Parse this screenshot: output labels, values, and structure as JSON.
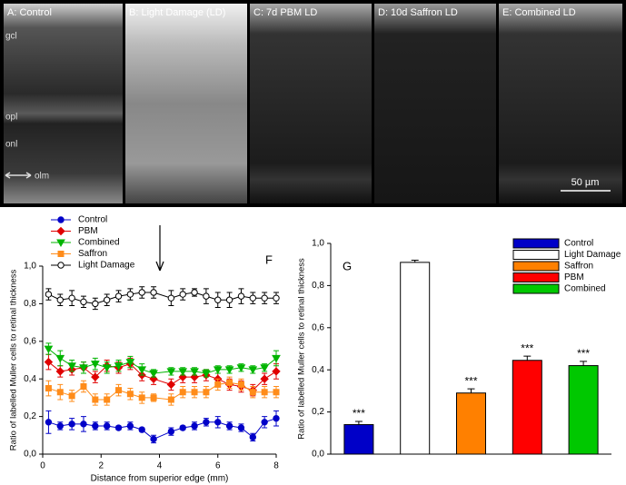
{
  "image_panels": {
    "labels": [
      "A: Control",
      "B: Light Damage (LD)",
      "C: 7d PBM LD",
      "D: 10d Saffron LD",
      "E: Combined LD"
    ],
    "layer_labels": [
      "gcl",
      "opl",
      "onl",
      "olm"
    ],
    "scale_bar": "50 µm"
  },
  "chart_data": [
    {
      "type": "line",
      "panel": "F",
      "xlabel": "Distance from superior edge (mm)",
      "ylabel": "Ratio of labelled Muller cells to retinal thickness",
      "x": [
        0.2,
        0.6,
        1.0,
        1.4,
        1.8,
        2.2,
        2.6,
        3.0,
        3.4,
        3.8,
        4.4,
        4.8,
        5.2,
        5.6,
        6.0,
        6.4,
        6.8,
        7.2,
        7.6,
        8.0
      ],
      "xlim": [
        0,
        8
      ],
      "xticks": [
        0,
        2,
        4,
        6,
        8
      ],
      "ylim": [
        0,
        1
      ],
      "yticks": [
        {
          "value": 0,
          "label": "0,0"
        },
        {
          "value": 0.2,
          "label": "0,2"
        },
        {
          "value": 0.4,
          "label": "0,4"
        },
        {
          "value": 0.6,
          "label": "0,6"
        },
        {
          "value": 0.8,
          "label": "0,8"
        },
        {
          "value": 1,
          "label": "1,0"
        }
      ],
      "series": [
        {
          "name": "Control",
          "color": "#0000c8",
          "marker": "circle",
          "marker_fill": "#0000c8",
          "values": [
            0.17,
            0.15,
            0.16,
            0.16,
            0.15,
            0.15,
            0.14,
            0.15,
            0.13,
            0.08,
            0.12,
            0.14,
            0.15,
            0.17,
            0.17,
            0.15,
            0.14,
            0.09,
            0.17,
            0.19
          ],
          "errors": [
            0.06,
            0.02,
            0.03,
            0.04,
            0.02,
            0.02,
            0.01,
            0.02,
            0.01,
            0.02,
            0.02,
            0.01,
            0.02,
            0.02,
            0.03,
            0.02,
            0.02,
            0.02,
            0.03,
            0.04
          ]
        },
        {
          "name": "PBM",
          "color": "#e00000",
          "marker": "diamond",
          "marker_fill": "#e00000",
          "values": [
            0.49,
            0.44,
            0.45,
            0.46,
            0.41,
            0.47,
            0.46,
            0.48,
            0.42,
            0.4,
            0.37,
            0.41,
            0.41,
            0.42,
            0.4,
            0.37,
            0.36,
            0.34,
            0.4,
            0.44
          ],
          "errors": [
            0.04,
            0.03,
            0.03,
            0.03,
            0.03,
            0.03,
            0.03,
            0.03,
            0.03,
            0.03,
            0.03,
            0.03,
            0.03,
            0.03,
            0.03,
            0.03,
            0.03,
            0.03,
            0.03,
            0.04
          ]
        },
        {
          "name": "Combined",
          "color": "#00b400",
          "marker": "triangle-down",
          "marker_fill": "#00b400",
          "values": [
            0.56,
            0.51,
            0.47,
            0.46,
            0.48,
            0.46,
            0.47,
            0.49,
            0.45,
            0.43,
            0.44,
            0.44,
            0.44,
            0.43,
            0.45,
            0.45,
            0.46,
            0.45,
            0.46,
            0.51
          ],
          "errors": [
            0.03,
            0.04,
            0.03,
            0.03,
            0.03,
            0.03,
            0.03,
            0.03,
            0.03,
            0.02,
            0.02,
            0.02,
            0.02,
            0.02,
            0.02,
            0.02,
            0.02,
            0.02,
            0.02,
            0.04
          ]
        },
        {
          "name": "Saffron",
          "color": "#ff8c1a",
          "marker": "square",
          "marker_fill": "#ff8c1a",
          "values": [
            0.35,
            0.33,
            0.31,
            0.36,
            0.29,
            0.29,
            0.34,
            0.32,
            0.3,
            0.3,
            0.29,
            0.33,
            0.33,
            0.33,
            0.37,
            0.38,
            0.37,
            0.33,
            0.33,
            0.33
          ],
          "errors": [
            0.04,
            0.04,
            0.03,
            0.03,
            0.03,
            0.03,
            0.03,
            0.03,
            0.03,
            0.02,
            0.03,
            0.03,
            0.03,
            0.03,
            0.03,
            0.03,
            0.03,
            0.03,
            0.03,
            0.03
          ]
        },
        {
          "name": "Light Damage",
          "color": "#000000",
          "marker": "circle",
          "marker_fill": "#ffffff",
          "values": [
            0.85,
            0.82,
            0.83,
            0.81,
            0.8,
            0.82,
            0.84,
            0.85,
            0.86,
            0.86,
            0.83,
            0.85,
            0.86,
            0.84,
            0.82,
            0.82,
            0.84,
            0.83,
            0.83,
            0.83
          ],
          "errors": [
            0.03,
            0.03,
            0.04,
            0.03,
            0.03,
            0.03,
            0.03,
            0.03,
            0.03,
            0.03,
            0.04,
            0.03,
            0.02,
            0.04,
            0.04,
            0.04,
            0.04,
            0.03,
            0.03,
            0.03
          ]
        }
      ]
    },
    {
      "type": "bar",
      "panel": "G",
      "ylabel": "Ratio of labelled Muller cells to retinal thickness",
      "categories": [
        "Control",
        "Light Damage",
        "Saffron",
        "PBM",
        "Combined"
      ],
      "values": [
        0.14,
        0.91,
        0.29,
        0.445,
        0.42
      ],
      "errors": [
        0.015,
        0.01,
        0.02,
        0.02,
        0.02
      ],
      "colors": [
        "#0000c8",
        "#ffffff",
        "#ff8000",
        "#ff0000",
        "#00c800"
      ],
      "significance": [
        "***",
        null,
        "***",
        "***",
        "***"
      ],
      "ylim": [
        0,
        1
      ],
      "yticks": [
        {
          "value": 0,
          "label": "0,0"
        },
        {
          "value": 0.2,
          "label": "0,2"
        },
        {
          "value": 0.4,
          "label": "0,4"
        },
        {
          "value": 0.6,
          "label": "0,6"
        },
        {
          "value": 0.8,
          "label": "0,8"
        },
        {
          "value": 1,
          "label": "1,0"
        }
      ]
    }
  ]
}
